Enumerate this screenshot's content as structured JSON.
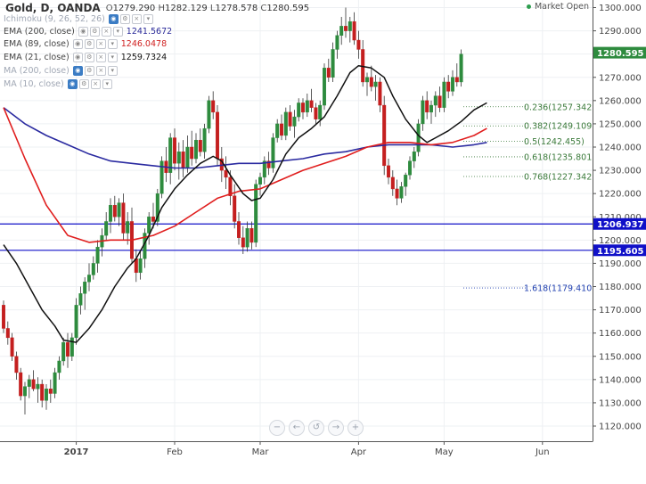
{
  "header": {
    "symbol": "Gold, D, OANDA",
    "ohlc": {
      "o_label": "O",
      "o": "1279.290",
      "h_label": "H",
      "h": "1282.129",
      "l_label": "L",
      "l": "1278.578",
      "c_label": "C",
      "c": "1280.595"
    },
    "market_status": "Market Open",
    "market_status_color": "#2e9e4f"
  },
  "indicators": [
    {
      "name": "Ichimoku (9, 26, 52, 26)",
      "value": "",
      "color": "",
      "faded": true
    },
    {
      "name": "EMA (200, close)",
      "value": "1241.5672",
      "color": "#2a2a99",
      "faded": false
    },
    {
      "name": "EMA (89, close)",
      "value": "1246.0478",
      "color": "#d02020",
      "faded": false
    },
    {
      "name": "EMA (21, close)",
      "value": "1259.7324",
      "color": "#111111",
      "faded": false
    },
    {
      "name": "MA (200, close)",
      "value": "",
      "color": "",
      "faded": true
    },
    {
      "name": "MA (10, close)",
      "value": "",
      "color": "",
      "faded": true
    }
  ],
  "nav_buttons": [
    "−",
    "←",
    "↺",
    "→",
    "+"
  ],
  "chart_data": {
    "type": "candlestick",
    "ylim": [
      1115,
      1305
    ],
    "y_ticks": [
      1120,
      1130,
      1140,
      1150,
      1160,
      1170,
      1180,
      1190,
      1200,
      1210,
      1220,
      1230,
      1240,
      1250,
      1260,
      1270,
      1280,
      1290,
      1300
    ],
    "x_labels": [
      {
        "label": "2017",
        "bar": 17,
        "bold": true
      },
      {
        "label": "Feb",
        "bar": 40,
        "bold": false
      },
      {
        "label": "Mar",
        "bar": 60,
        "bold": false
      },
      {
        "label": "Apr",
        "bar": 83,
        "bold": false
      },
      {
        "label": "May",
        "bar": 103,
        "bold": false
      },
      {
        "label": "Jun",
        "bar": 126,
        "bold": false
      }
    ],
    "candles": [
      [
        1172,
        1174,
        1160,
        1162
      ],
      [
        1162,
        1165,
        1155,
        1158
      ],
      [
        1158,
        1160,
        1148,
        1150
      ],
      [
        1150,
        1152,
        1140,
        1143
      ],
      [
        1143,
        1145,
        1131,
        1133
      ],
      [
        1133,
        1139,
        1125,
        1137
      ],
      [
        1137,
        1142,
        1132,
        1140
      ],
      [
        1140,
        1144,
        1135,
        1136
      ],
      [
        1136,
        1141,
        1130,
        1138
      ],
      [
        1138,
        1140,
        1128,
        1131
      ],
      [
        1131,
        1138,
        1127,
        1136
      ],
      [
        1136,
        1140,
        1130,
        1134
      ],
      [
        1134,
        1145,
        1132,
        1143
      ],
      [
        1143,
        1150,
        1140,
        1148
      ],
      [
        1148,
        1158,
        1146,
        1156
      ],
      [
        1156,
        1160,
        1145,
        1150
      ],
      [
        1150,
        1160,
        1148,
        1158
      ],
      [
        1158,
        1175,
        1155,
        1172
      ],
      [
        1172,
        1180,
        1168,
        1177
      ],
      [
        1177,
        1184,
        1170,
        1182
      ],
      [
        1182,
        1190,
        1178,
        1185
      ],
      [
        1185,
        1193,
        1183,
        1190
      ],
      [
        1190,
        1200,
        1186,
        1197
      ],
      [
        1197,
        1205,
        1193,
        1202
      ],
      [
        1202,
        1212,
        1200,
        1208
      ],
      [
        1208,
        1218,
        1203,
        1215
      ],
      [
        1215,
        1219,
        1208,
        1210
      ],
      [
        1210,
        1218,
        1206,
        1216
      ],
      [
        1216,
        1220,
        1200,
        1203
      ],
      [
        1203,
        1212,
        1198,
        1208
      ],
      [
        1208,
        1214,
        1190,
        1192
      ],
      [
        1192,
        1196,
        1182,
        1186
      ],
      [
        1186,
        1195,
        1183,
        1192
      ],
      [
        1192,
        1205,
        1188,
        1203
      ],
      [
        1203,
        1212,
        1198,
        1210
      ],
      [
        1210,
        1216,
        1205,
        1208
      ],
      [
        1208,
        1222,
        1206,
        1220
      ],
      [
        1220,
        1236,
        1218,
        1234
      ],
      [
        1234,
        1240,
        1225,
        1229
      ],
      [
        1229,
        1246,
        1224,
        1244
      ],
      [
        1244,
        1248,
        1230,
        1233
      ],
      [
        1233,
        1242,
        1226,
        1238
      ],
      [
        1238,
        1243,
        1227,
        1231
      ],
      [
        1231,
        1245,
        1229,
        1240
      ],
      [
        1240,
        1247,
        1232,
        1235
      ],
      [
        1235,
        1246,
        1233,
        1243
      ],
      [
        1243,
        1248,
        1236,
        1238
      ],
      [
        1238,
        1250,
        1235,
        1248
      ],
      [
        1248,
        1262,
        1246,
        1260
      ],
      [
        1260,
        1264,
        1252,
        1255
      ],
      [
        1255,
        1258,
        1232,
        1235
      ],
      [
        1235,
        1240,
        1225,
        1230
      ],
      [
        1230,
        1236,
        1222,
        1227
      ],
      [
        1227,
        1230,
        1215,
        1219
      ],
      [
        1219,
        1224,
        1205,
        1208
      ],
      [
        1208,
        1212,
        1198,
        1201
      ],
      [
        1201,
        1206,
        1194,
        1197
      ],
      [
        1197,
        1208,
        1195,
        1205
      ],
      [
        1205,
        1208,
        1196,
        1199
      ],
      [
        1199,
        1226,
        1197,
        1224
      ],
      [
        1224,
        1229,
        1219,
        1227
      ],
      [
        1227,
        1236,
        1224,
        1234
      ],
      [
        1234,
        1238,
        1228,
        1231
      ],
      [
        1231,
        1246,
        1229,
        1244
      ],
      [
        1244,
        1252,
        1242,
        1250
      ],
      [
        1250,
        1254,
        1243,
        1245
      ],
      [
        1245,
        1257,
        1243,
        1255
      ],
      [
        1255,
        1258,
        1247,
        1249
      ],
      [
        1249,
        1256,
        1244,
        1253
      ],
      [
        1253,
        1261,
        1251,
        1259
      ],
      [
        1259,
        1261,
        1252,
        1255
      ],
      [
        1255,
        1263,
        1253,
        1260
      ],
      [
        1260,
        1265,
        1255,
        1257
      ],
      [
        1257,
        1259,
        1250,
        1252
      ],
      [
        1252,
        1260,
        1249,
        1258
      ],
      [
        1258,
        1276,
        1256,
        1274
      ],
      [
        1274,
        1278,
        1268,
        1270
      ],
      [
        1270,
        1285,
        1268,
        1282
      ],
      [
        1282,
        1290,
        1278,
        1288
      ],
      [
        1288,
        1296,
        1284,
        1292
      ],
      [
        1292,
        1300,
        1287,
        1290
      ],
      [
        1290,
        1296,
        1285,
        1294
      ],
      [
        1294,
        1298,
        1284,
        1286
      ],
      [
        1286,
        1290,
        1278,
        1282
      ],
      [
        1282,
        1286,
        1266,
        1268
      ],
      [
        1268,
        1272,
        1262,
        1270
      ],
      [
        1270,
        1275,
        1264,
        1266
      ],
      [
        1266,
        1271,
        1260,
        1268
      ],
      [
        1268,
        1270,
        1255,
        1258
      ],
      [
        1258,
        1262,
        1228,
        1232
      ],
      [
        1232,
        1235,
        1224,
        1227
      ],
      [
        1227,
        1230,
        1219,
        1222
      ],
      [
        1222,
        1226,
        1215,
        1218
      ],
      [
        1218,
        1225,
        1216,
        1223
      ],
      [
        1223,
        1229,
        1219,
        1228
      ],
      [
        1228,
        1236,
        1226,
        1234
      ],
      [
        1234,
        1240,
        1231,
        1238
      ],
      [
        1238,
        1252,
        1236,
        1250
      ],
      [
        1250,
        1262,
        1247,
        1260
      ],
      [
        1260,
        1264,
        1252,
        1255
      ],
      [
        1255,
        1260,
        1250,
        1258
      ],
      [
        1258,
        1264,
        1253,
        1262
      ],
      [
        1262,
        1266,
        1255,
        1257
      ],
      [
        1257,
        1270,
        1255,
        1268
      ],
      [
        1268,
        1271,
        1261,
        1264
      ],
      [
        1264,
        1273,
        1262,
        1270
      ],
      [
        1270,
        1276,
        1266,
        1268
      ],
      [
        1268,
        1282,
        1266,
        1280
      ]
    ],
    "ema21": [
      [
        0,
        1198
      ],
      [
        3,
        1190
      ],
      [
        6,
        1180
      ],
      [
        9,
        1170
      ],
      [
        12,
        1163
      ],
      [
        14,
        1157
      ],
      [
        17,
        1156
      ],
      [
        20,
        1162
      ],
      [
        23,
        1170
      ],
      [
        26,
        1180
      ],
      [
        29,
        1188
      ],
      [
        31,
        1192
      ],
      [
        34,
        1202
      ],
      [
        37,
        1214
      ],
      [
        40,
        1222
      ],
      [
        43,
        1228
      ],
      [
        46,
        1233
      ],
      [
        49,
        1236
      ],
      [
        51,
        1234
      ],
      [
        53,
        1228
      ],
      [
        56,
        1220
      ],
      [
        58,
        1217
      ],
      [
        60,
        1218
      ],
      [
        63,
        1226
      ],
      [
        66,
        1237
      ],
      [
        69,
        1244
      ],
      [
        72,
        1248
      ],
      [
        75,
        1253
      ],
      [
        78,
        1262
      ],
      [
        81,
        1272
      ],
      [
        83,
        1275
      ],
      [
        86,
        1274
      ],
      [
        89,
        1270
      ],
      [
        91,
        1262
      ],
      [
        94,
        1252
      ],
      [
        97,
        1245
      ],
      [
        99,
        1242
      ],
      [
        101,
        1244
      ],
      [
        104,
        1247
      ],
      [
        107,
        1251
      ],
      [
        110,
        1256
      ],
      [
        113,
        1259
      ]
    ],
    "ema89": [
      [
        0,
        1257
      ],
      [
        5,
        1235
      ],
      [
        10,
        1215
      ],
      [
        15,
        1202
      ],
      [
        20,
        1199
      ],
      [
        25,
        1200
      ],
      [
        30,
        1200
      ],
      [
        35,
        1202
      ],
      [
        40,
        1206
      ],
      [
        45,
        1212
      ],
      [
        50,
        1218
      ],
      [
        55,
        1221
      ],
      [
        60,
        1222
      ],
      [
        65,
        1226
      ],
      [
        70,
        1230
      ],
      [
        75,
        1233
      ],
      [
        80,
        1236
      ],
      [
        85,
        1240
      ],
      [
        90,
        1242
      ],
      [
        95,
        1242
      ],
      [
        100,
        1241
      ],
      [
        105,
        1242
      ],
      [
        110,
        1245
      ],
      [
        113,
        1248
      ]
    ],
    "ema200": [
      [
        0,
        1257
      ],
      [
        5,
        1250
      ],
      [
        10,
        1245
      ],
      [
        15,
        1241
      ],
      [
        20,
        1237
      ],
      [
        25,
        1234
      ],
      [
        30,
        1233
      ],
      [
        35,
        1232
      ],
      [
        40,
        1231
      ],
      [
        45,
        1231
      ],
      [
        50,
        1232
      ],
      [
        55,
        1233
      ],
      [
        60,
        1233
      ],
      [
        65,
        1234
      ],
      [
        70,
        1235
      ],
      [
        75,
        1237
      ],
      [
        80,
        1238
      ],
      [
        85,
        1240
      ],
      [
        90,
        1241
      ],
      [
        95,
        1241
      ],
      [
        100,
        1241
      ],
      [
        105,
        1240
      ],
      [
        110,
        1241
      ],
      [
        113,
        1242
      ]
    ],
    "horizontal_lines": [
      {
        "price": 1206.937,
        "label": "1206.937",
        "color": "#1010c8"
      },
      {
        "price": 1195.605,
        "label": "1195.605",
        "color": "#1010c8"
      }
    ],
    "current_price": {
      "price": 1280.595,
      "label": "1280.595",
      "color": "#2e8b3e"
    },
    "fib_levels": [
      {
        "price": 1257.342,
        "label": "0.236(1257.342)",
        "color": "#3a7a3a"
      },
      {
        "price": 1249.109,
        "label": "0.382(1249.109)",
        "color": "#3a7a3a"
      },
      {
        "price": 1242.455,
        "label": "0.5(1242.455)",
        "color": "#3a7a3a"
      },
      {
        "price": 1235.801,
        "label": "0.618(1235.801)",
        "color": "#3a7a3a"
      },
      {
        "price": 1227.342,
        "label": "0.768(1227.342)",
        "color": "#3a7a3a"
      },
      {
        "price": 1179.41,
        "label": "1.618(1179.410)",
        "color": "#2040b0"
      }
    ],
    "colors": {
      "up": "#2e8b3e",
      "down": "#c41f1f",
      "ema21": "#111111",
      "ema89": "#e01e1e",
      "ema200": "#2a2aa0"
    }
  }
}
